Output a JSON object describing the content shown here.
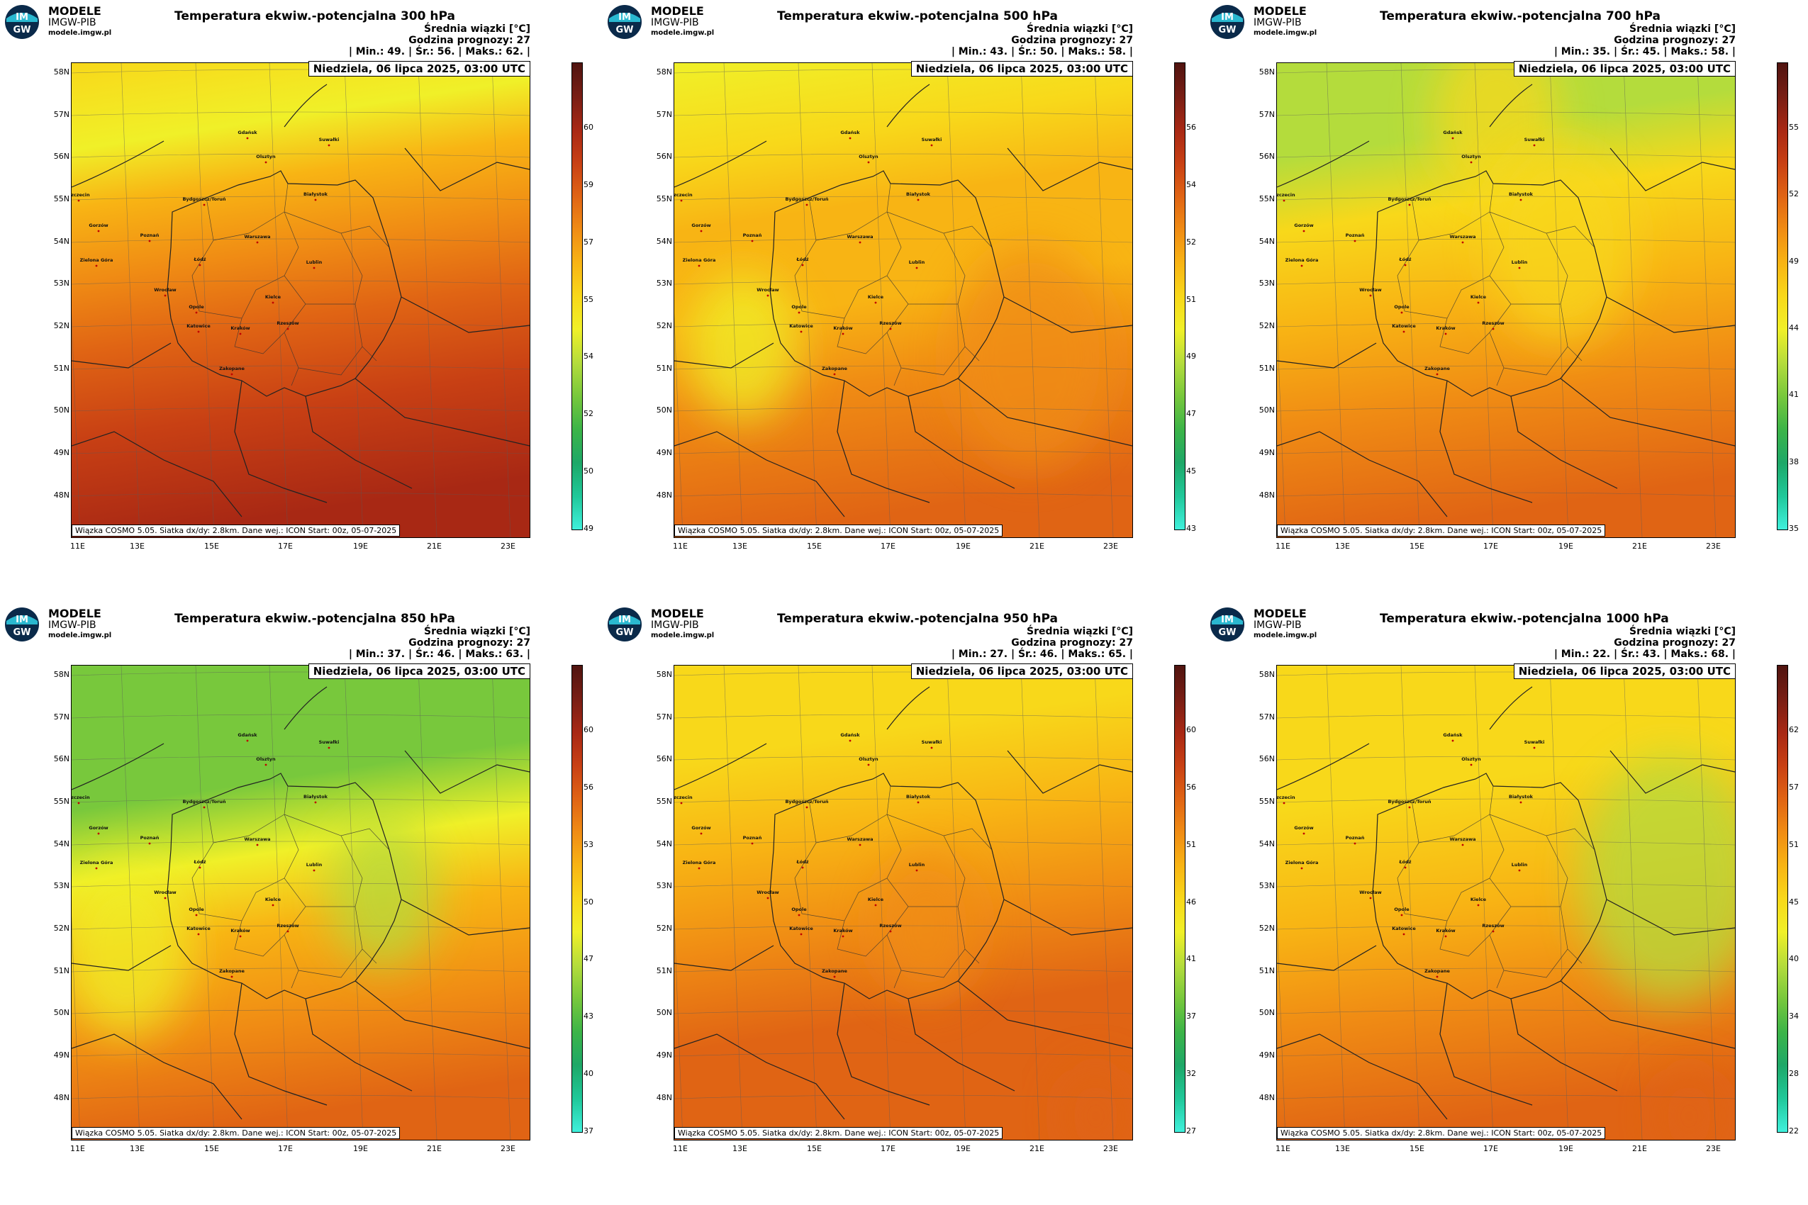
{
  "brand": {
    "name": "MODELE",
    "org": "IMGW-PIB",
    "url": "modele.imgw.pl",
    "logo_text_top": "IM",
    "logo_text_bottom": "GW"
  },
  "common": {
    "unit_line": "Średnia wiązki [°C]",
    "forecast_hour": "Godzina prognozy: 27",
    "valid_time": "Niedziela, 06 lipca 2025, 03:00 UTC",
    "model_info": "Wiązka COSMO 5.05. Siatka dx/dy: 2.8km. Dane wej.: ICON Start: 00z, 05-07-2025",
    "lat_labels": [
      "58N",
      "57N",
      "56N",
      "55N",
      "54N",
      "53N",
      "52N",
      "51N",
      "50N",
      "49N",
      "48N"
    ],
    "lon_labels": [
      "11E",
      "13E",
      "15E",
      "17E",
      "19E",
      "21E",
      "23E"
    ],
    "cities": [
      "Gdańsk",
      "Olsztyn",
      "Suwałki",
      "Szczecin",
      "Bydgoszcz/Toruń",
      "Białystok",
      "Gorzów",
      "Poznań",
      "Warszawa",
      "Zielona Góra",
      "Łódź",
      "Lublin",
      "Wrocław",
      "Kielce",
      "Opole",
      "Rzeszów",
      "Katowice",
      "Kraków",
      "Zakopane"
    ]
  },
  "colors": {
    "ramp": [
      "#40f0dc",
      "#20c89a",
      "#1ea868",
      "#3cb448",
      "#78c83c",
      "#b4dc3c",
      "#f0f028",
      "#f8d81a",
      "#f8b414",
      "#f08c14",
      "#e06414",
      "#c84014",
      "#a82814",
      "#781e14",
      "#501410"
    ]
  },
  "panels": [
    {
      "title": "Temperatura ekwiw.-potencjalna 300 hPa",
      "stats": "| Min.:   49. | Śr.:   56. | Maks.:   62. |",
      "min": 49,
      "mean": 56,
      "max": 62,
      "colorbar_ticks": [
        "60",
        "59",
        "57",
        "55",
        "54",
        "52",
        "50",
        "49"
      ]
    },
    {
      "title": "Temperatura ekwiw.-potencjalna 500 hPa",
      "stats": "| Min.:   43. | Śr.:   50. | Maks.:   58. |",
      "min": 43,
      "mean": 50,
      "max": 58,
      "colorbar_ticks": [
        "56",
        "54",
        "52",
        "51",
        "49",
        "47",
        "45",
        "43"
      ]
    },
    {
      "title": "Temperatura ekwiw.-potencjalna 700 hPa",
      "stats": "| Min.:   35. | Śr.:   45. | Maks.:   58. |",
      "min": 35,
      "mean": 45,
      "max": 58,
      "colorbar_ticks": [
        "55",
        "52",
        "49",
        "44",
        "41",
        "38",
        "35"
      ]
    },
    {
      "title": "Temperatura ekwiw.-potencjalna 850 hPa",
      "stats": "| Min.:   37. | Śr.:   46. | Maks.:   63. |",
      "min": 37,
      "mean": 46,
      "max": 63,
      "colorbar_ticks": [
        "60",
        "56",
        "53",
        "50",
        "47",
        "43",
        "40",
        "37"
      ]
    },
    {
      "title": "Temperatura ekwiw.-potencjalna 950 hPa",
      "stats": "| Min.:   27. | Śr.:   46. | Maks.:   65. |",
      "min": 27,
      "mean": 46,
      "max": 65,
      "colorbar_ticks": [
        "60",
        "56",
        "51",
        "46",
        "41",
        "37",
        "32",
        "27"
      ]
    },
    {
      "title": "Temperatura ekwiw.-potencjalna 1000 hPa",
      "stats": "| Min.:   22. | Śr.:   43. | Maks.:   68. |",
      "min": 22,
      "mean": 43,
      "max": 68,
      "colorbar_ticks": [
        "62",
        "57",
        "51",
        "45",
        "40",
        "34",
        "28",
        "22"
      ]
    }
  ]
}
